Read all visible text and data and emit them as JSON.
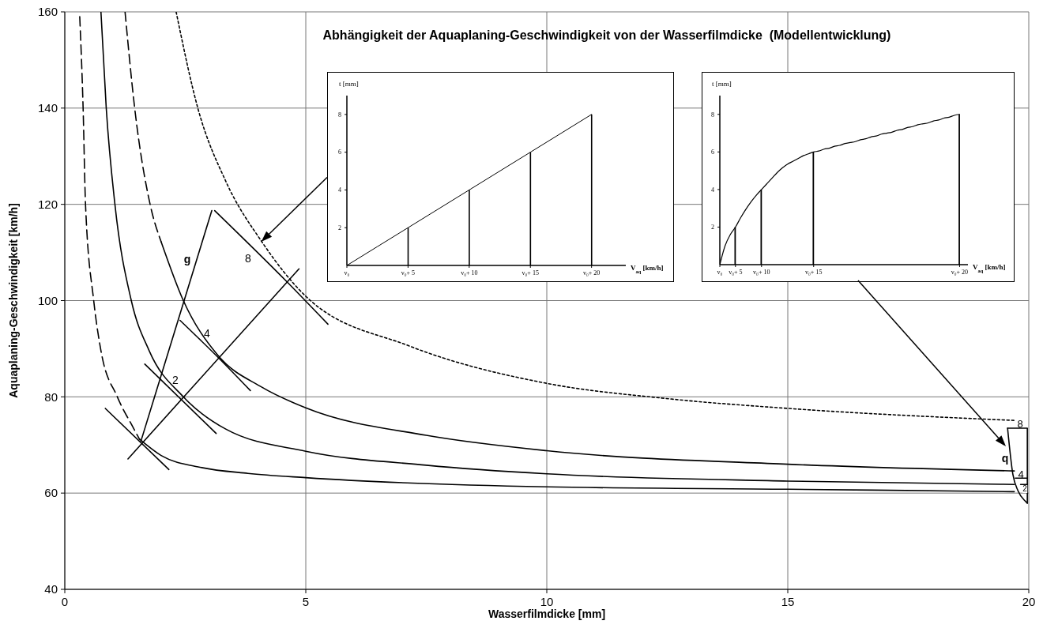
{
  "chart_data": [
    {
      "type": "line",
      "title": "Abhängigkeit der Aquaplaning-Geschwindigkeit von der Wasserfilmdicke  (Modellentwicklung)",
      "xlabel": "Wasserfilmdicke [mm]",
      "ylabel": "Aquaplaning-Geschwindigkeit [km/h]",
      "xlim": [
        0,
        20
      ],
      "xticks": [
        0,
        5,
        10,
        15,
        20
      ],
      "ylim": [
        40,
        160
      ],
      "yticks": [
        40,
        60,
        80,
        100,
        120,
        140,
        160
      ],
      "grid": true,
      "marker": "none",
      "series": [
        {
          "color": "#000000",
          "line_style": "dashed",
          "x": [
            0.31,
            0.38,
            0.43,
            0.6,
            0.75,
            1.09,
            1.42,
            1.55
          ],
          "values": [
            159,
            140,
            120,
            100,
            89.6,
            80,
            73.6,
            71.2
          ]
        },
        {
          "color": "#000000",
          "line_style": "solid",
          "x": [
            1.55,
            2.0,
            2.84,
            3.8,
            5,
            10,
            15,
            19.7
          ],
          "values": [
            71.2,
            67.8,
            65.3,
            64.1,
            63.2,
            61.3,
            60.8,
            60.3
          ]
        },
        {
          "color": "#000000",
          "line_style": "solid",
          "x": [
            0.75,
            0.86,
            1.04,
            1.38,
            1.75,
            2.46,
            3.34,
            5,
            7.5,
            10,
            15,
            19.7
          ],
          "values": [
            160,
            140,
            120,
            100,
            89.6,
            80,
            73.3,
            68.7,
            65.8,
            64.0,
            62.5,
            61.8
          ]
        },
        {
          "color": "#000000",
          "line_style": "dashed",
          "x": [
            1.25,
            1.45,
            1.77,
            2.0
          ],
          "values": [
            160,
            140,
            120,
            112.2
          ]
        },
        {
          "color": "#000000",
          "line_style": "solid",
          "x": [
            2.0,
            2.46,
            3.17,
            4.09,
            5,
            7.5,
            10,
            15,
            19.7
          ],
          "values": [
            112.2,
            100,
            88.7,
            82,
            77.7,
            72,
            68.8,
            66.0,
            64.6
          ]
        },
        {
          "color": "#000000",
          "line_style": "dotted",
          "x": [
            2.31,
            2.76,
            3.34,
            4.09,
            5,
            7.14,
            10,
            12.43,
            15,
            19.7
          ],
          "values": [
            160,
            140,
            124.8,
            112.2,
            100.9,
            90.6,
            82.8,
            79.7,
            77.6,
            75.1
          ]
        },
        {
          "color": "#000000",
          "line_style": "solid",
          "x": [
            1.58,
            3.05
          ],
          "values": [
            70.8,
            118.7
          ]
        },
        {
          "color": "#000000",
          "line_style": "solid",
          "x": [
            3.11,
            4.61,
            5.46
          ],
          "values": [
            118.7,
            103.9,
            95.1
          ]
        },
        {
          "color": "#000000",
          "line_style": "solid",
          "x": [
            2.39,
            3.19,
            3.85
          ],
          "values": [
            95.9,
            88.1,
            81.3
          ]
        },
        {
          "color": "#000000",
          "line_style": "solid",
          "x": [
            1.66,
            3.14
          ],
          "values": [
            86.8,
            72.4
          ]
        },
        {
          "color": "#000000",
          "line_style": "solid",
          "x": [
            0.84,
            2.16
          ],
          "values": [
            77.6,
            64.9
          ]
        },
        {
          "color": "#000000",
          "line_style": "solid",
          "x": [
            1.31,
            4.86
          ],
          "values": [
            67.1,
            106.6
          ]
        },
        {
          "color": "#000000",
          "line_style": "solid",
          "x": [
            19.56,
            19.97,
            19.97
          ],
          "values": [
            73.5,
            73.5,
            57.9
          ]
        },
        {
          "color": "#000000",
          "line_style": "solid",
          "x": [
            19.56,
            19.67,
            19.78,
            19.94,
            19.97
          ],
          "values": [
            73.5,
            63.9,
            60.4,
            58.2,
            57.9
          ]
        },
        {
          "color": "#000000",
          "line_style": "solid",
          "x": [
            19.72,
            19.97
          ],
          "values": [
            63.1,
            63.1
          ]
        },
        {
          "color": "#000000",
          "line_style": "solid",
          "x": [
            19.83,
            19.97
          ],
          "values": [
            61.8,
            61.8
          ]
        }
      ],
      "annotations": [
        "g",
        "8",
        "4",
        "2",
        "q",
        "8",
        "4",
        "2"
      ]
    },
    {
      "type": "line",
      "xlabel": "V$_{aq}$ [km/h]",
      "ylabel": "t [mm]",
      "ylim": [
        0,
        9
      ],
      "marker": "none",
      "categories": [
        "v₀",
        "v₀+ 5",
        "v₀+ 10",
        "v₀+ 15",
        "v₀+ 20"
      ],
      "yticks": [
        2,
        4,
        6,
        8
      ],
      "series": [
        {
          "color": "#000000",
          "values": [
            0,
            2,
            4,
            6,
            8
          ]
        },
        {
          "type": "bar",
          "color": "#000000",
          "values": [
            null,
            2,
            4,
            6,
            8
          ]
        }
      ]
    },
    {
      "type": "line",
      "xlabel": "V$_{aq}$ [km/h]",
      "ylabel": "t [mm]",
      "ylim": [
        0,
        9
      ],
      "marker": "none",
      "categories": [
        "v₀",
        null,
        null,
        "v₀+ 5",
        null,
        null,
        null,
        null,
        "v₀+ 10",
        null,
        null,
        null,
        null,
        null,
        null,
        null,
        null,
        null,
        "v₀+ 15",
        null,
        null,
        null,
        null,
        null,
        null,
        null,
        null,
        null,
        null,
        null,
        null,
        null,
        null,
        null,
        null,
        null,
        null,
        null,
        null,
        null,
        null,
        null,
        null,
        null,
        null,
        null,
        "v₀+ 20"
      ],
      "yticks": [
        2,
        4,
        6,
        8
      ],
      "series": [
        {
          "color": "#000000",
          "values": [
            0,
            1.0,
            1.6,
            2,
            2.5,
            2.95,
            3.35,
            3.7,
            4,
            4.3,
            4.6,
            4.9,
            5.15,
            5.35,
            5.5,
            5.65,
            5.8,
            5.9,
            6,
            6.05,
            6.15,
            6.2,
            6.3,
            6.35,
            6.45,
            6.5,
            6.55,
            6.65,
            6.7,
            6.8,
            6.85,
            6.95,
            7.0,
            7.05,
            7.15,
            7.2,
            7.3,
            7.35,
            7.45,
            7.5,
            7.55,
            7.65,
            7.7,
            7.8,
            7.85,
            7.95,
            8
          ]
        },
        {
          "type": "bar",
          "color": "#000000",
          "values": [
            null,
            null,
            null,
            2,
            null,
            null,
            null,
            null,
            4,
            null,
            null,
            null,
            null,
            null,
            null,
            null,
            null,
            null,
            6,
            null,
            null,
            null,
            null,
            null,
            null,
            null,
            null,
            null,
            null,
            null,
            null,
            null,
            null,
            null,
            null,
            null,
            null,
            null,
            null,
            null,
            null,
            null,
            null,
            null,
            null,
            null,
            8
          ]
        }
      ]
    }
  ]
}
